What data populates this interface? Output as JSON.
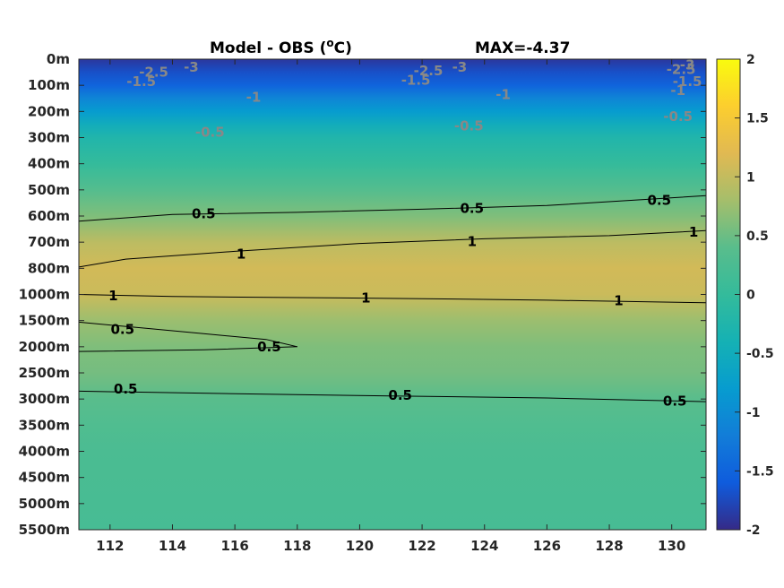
{
  "chart_data": {
    "type": "heatmap",
    "title": "Model - OBS (",
    "title_unit_sup": "o",
    "title_unit_tail": "C)",
    "max_label": "MAX=-4.37",
    "x": {
      "ticks": [
        112,
        114,
        116,
        118,
        120,
        122,
        124,
        126,
        128,
        130
      ],
      "tick_labels": [
        "112",
        "114",
        "116",
        "118",
        "120",
        "122",
        "124",
        "126",
        "128",
        "130"
      ],
      "range": [
        111,
        131.1
      ]
    },
    "y": {
      "tick_labels": [
        "0m",
        "100m",
        "200m",
        "300m",
        "400m",
        "500m",
        "600m",
        "700m",
        "800m",
        "1000m",
        "1500m",
        "2000m",
        "2500m",
        "3000m",
        "3500m",
        "4000m",
        "4500m",
        "5000m",
        "5500m"
      ],
      "values": [
        0,
        100,
        200,
        300,
        400,
        500,
        600,
        700,
        800,
        1000,
        1500,
        2000,
        2500,
        3000,
        3500,
        4000,
        4500,
        5000,
        5500
      ]
    },
    "colorbar": {
      "range": [
        -2,
        2
      ],
      "ticks": [
        2,
        1.5,
        1,
        0.5,
        0,
        -0.5,
        -1,
        -1.5,
        -2
      ],
      "tick_labels": [
        "2",
        "1.5",
        "1",
        "0.5",
        "0",
        "-0.5",
        "-1",
        "-1.5",
        "-2"
      ]
    },
    "profile": [
      {
        "depth": 0,
        "value": -1.9
      },
      {
        "depth": 50,
        "value": -1.7
      },
      {
        "depth": 100,
        "value": -1.5
      },
      {
        "depth": 150,
        "value": -1.1
      },
      {
        "depth": 200,
        "value": -0.8
      },
      {
        "depth": 250,
        "value": -0.5
      },
      {
        "depth": 300,
        "value": -0.25
      },
      {
        "depth": 400,
        "value": 0.0
      },
      {
        "depth": 500,
        "value": 0.35
      },
      {
        "depth": 600,
        "value": 0.6
      },
      {
        "depth": 700,
        "value": 0.95
      },
      {
        "depth": 800,
        "value": 1.1
      },
      {
        "depth": 1000,
        "value": 1.05
      },
      {
        "depth": 1500,
        "value": 0.75
      },
      {
        "depth": 2000,
        "value": 0.6
      },
      {
        "depth": 2500,
        "value": 0.55
      },
      {
        "depth": 3000,
        "value": 0.4
      },
      {
        "depth": 3500,
        "value": 0.3
      },
      {
        "depth": 4000,
        "value": 0.25
      },
      {
        "depth": 5000,
        "value": 0.22
      },
      {
        "depth": 5500,
        "value": 0.2
      }
    ],
    "contours": [
      {
        "level": 0.5,
        "points": [
          [
            111,
            620
          ],
          [
            114,
            594
          ],
          [
            118,
            586
          ],
          [
            122,
            574
          ],
          [
            126,
            560
          ],
          [
            131.1,
            522
          ]
        ]
      },
      {
        "level": 1,
        "points": [
          [
            111,
            795
          ],
          [
            112.5,
            765
          ],
          [
            116,
            735
          ],
          [
            120,
            705
          ],
          [
            124,
            687
          ],
          [
            128,
            675
          ],
          [
            131.1,
            656
          ]
        ]
      },
      {
        "level": 1,
        "points": [
          [
            111,
            1000
          ],
          [
            114,
            1040
          ],
          [
            118,
            1060
          ],
          [
            122,
            1080
          ],
          [
            126,
            1110
          ],
          [
            131.1,
            1160
          ]
        ]
      },
      {
        "level": 0.5,
        "points": [
          [
            111,
            1530
          ],
          [
            113,
            1640
          ],
          [
            115,
            1750
          ],
          [
            117,
            1860
          ],
          [
            118,
            2000
          ]
        ]
      },
      {
        "level": 0.5,
        "points": [
          [
            111,
            2090
          ],
          [
            115,
            2060
          ],
          [
            118,
            2000
          ]
        ]
      },
      {
        "level": 0.5,
        "points": [
          [
            111,
            2850
          ],
          [
            116,
            2900
          ],
          [
            121,
            2940
          ],
          [
            126,
            2980
          ],
          [
            131.1,
            3050
          ]
        ]
      }
    ],
    "contour_labels": [
      {
        "text": "0.5",
        "x": 115,
        "y": 592,
        "color": "#000000"
      },
      {
        "text": "0.5",
        "x": 123.6,
        "y": 570,
        "color": "#000000"
      },
      {
        "text": "0.5",
        "x": 129.6,
        "y": 540,
        "color": "#000000"
      },
      {
        "text": "1",
        "x": 116.2,
        "y": 745,
        "color": "#000000"
      },
      {
        "text": "1",
        "x": 123.6,
        "y": 697,
        "color": "#000000"
      },
      {
        "text": "1",
        "x": 130.7,
        "y": 662,
        "color": "#000000"
      },
      {
        "text": "1",
        "x": 112.1,
        "y": 1025,
        "color": "#000000"
      },
      {
        "text": "1",
        "x": 120.2,
        "y": 1065,
        "color": "#000000"
      },
      {
        "text": "1",
        "x": 128.3,
        "y": 1122,
        "color": "#000000"
      },
      {
        "text": "0.5",
        "x": 112.4,
        "y": 1670,
        "color": "#000000"
      },
      {
        "text": "0.5",
        "x": 117.1,
        "y": 2005,
        "color": "#000000"
      },
      {
        "text": "0.5",
        "x": 112.5,
        "y": 2810,
        "color": "#000000"
      },
      {
        "text": "0.5",
        "x": 121.3,
        "y": 2925,
        "color": "#000000"
      },
      {
        "text": "0.5",
        "x": 130.1,
        "y": 3040,
        "color": "#000000"
      },
      {
        "text": "-2.5",
        "x": 113.4,
        "y": 50,
        "color": "#888888"
      },
      {
        "text": "-3",
        "x": 114.6,
        "y": 30,
        "color": "#888888"
      },
      {
        "text": "-1.5",
        "x": 113.0,
        "y": 85,
        "color": "#888888"
      },
      {
        "text": "-2.5",
        "x": 122.2,
        "y": 45,
        "color": "#888888"
      },
      {
        "text": "-3",
        "x": 123.2,
        "y": 30,
        "color": "#888888"
      },
      {
        "text": "-1.5",
        "x": 121.8,
        "y": 80,
        "color": "#888888"
      },
      {
        "text": "-2.5",
        "x": 130.3,
        "y": 40,
        "color": "#888888"
      },
      {
        "text": "-3",
        "x": 130.5,
        "y": 22,
        "color": "#888888"
      },
      {
        "text": "-1.5",
        "x": 130.5,
        "y": 85,
        "color": "#888888"
      },
      {
        "text": "-1",
        "x": 116.6,
        "y": 145,
        "color": "#888888"
      },
      {
        "text": "-1",
        "x": 124.6,
        "y": 135,
        "color": "#888888"
      },
      {
        "text": "-1",
        "x": 130.2,
        "y": 120,
        "color": "#888888"
      },
      {
        "text": "-0.5",
        "x": 115.2,
        "y": 280,
        "color": "#888888"
      },
      {
        "text": "-0.5",
        "x": 123.5,
        "y": 255,
        "color": "#888888"
      },
      {
        "text": "-0.5",
        "x": 130.2,
        "y": 220,
        "color": "#888888"
      }
    ],
    "grid": false,
    "legend": "colorbar-right"
  }
}
